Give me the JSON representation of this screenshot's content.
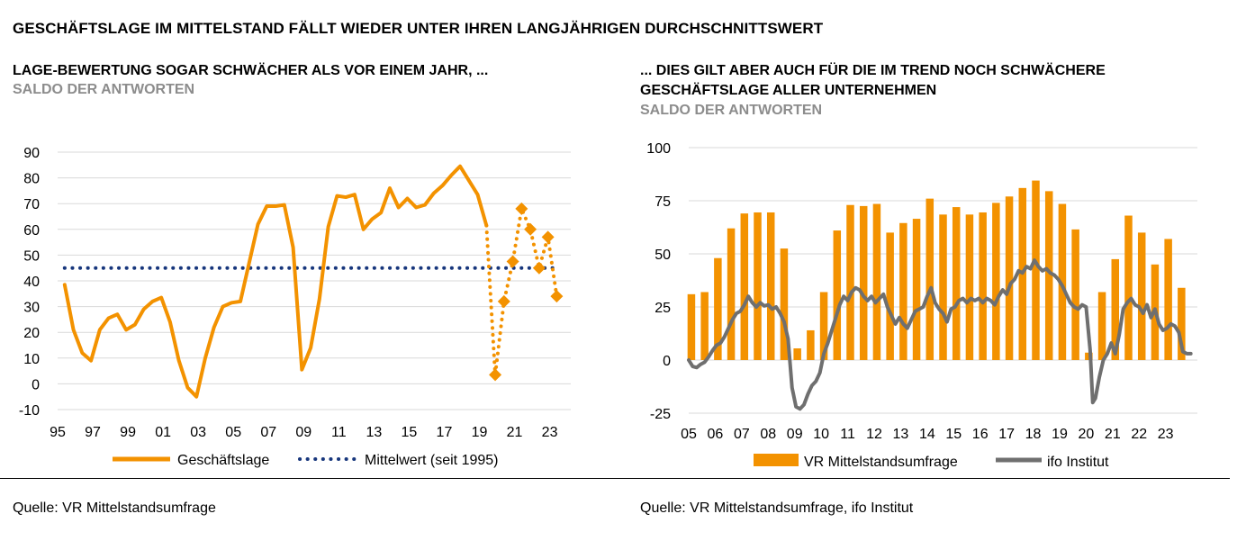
{
  "header": {
    "main_title": "GESCHÄFTSLAGE IM MITTELSTAND FÄLLT WIEDER UNTER IHREN LANGJÄHRIGEN DURCHSCHNITTSWERT"
  },
  "left": {
    "title": "LAGE-BEWERTUNG SOGAR SCHWÄCHER ALS VOR EINEM JAHR, ...",
    "subtitle": "SALDO DER ANTWORTEN",
    "source": "Quelle: VR Mittelstandsumfrage"
  },
  "right": {
    "title_line1": "... DIES GILT ABER AUCH FÜR DIE IM TREND NOCH SCHWÄCHERE",
    "title_line2": "GESCHÄFTSLAGE ALLER UNTERNEHMEN",
    "subtitle": "SALDO DER ANTWORTEN",
    "source": "Quelle: VR Mittelstandsumfrage, ifo Institut"
  },
  "chart_data": [
    {
      "type": "line",
      "title": "LAGE-BEWERTUNG SOGAR SCHWÄCHER ALS VOR EINEM JAHR, ...",
      "subtitle": "SALDO DER ANTWORTEN",
      "x_range": [
        1995,
        2024.2
      ],
      "ylim": [
        -10,
        90
      ],
      "y_ticks": [
        90,
        80,
        70,
        60,
        50,
        40,
        30,
        20,
        10,
        0,
        -10
      ],
      "x_ticks": [
        {
          "x": 1995,
          "label": "95"
        },
        {
          "x": 1997,
          "label": "97"
        },
        {
          "x": 1999,
          "label": "99"
        },
        {
          "x": 2001,
          "label": "01"
        },
        {
          "x": 2003,
          "label": "03"
        },
        {
          "x": 2005,
          "label": "05"
        },
        {
          "x": 2007,
          "label": "07"
        },
        {
          "x": 2009,
          "label": "09"
        },
        {
          "x": 2011,
          "label": "11"
        },
        {
          "x": 2013,
          "label": "13"
        },
        {
          "x": 2015,
          "label": "15"
        },
        {
          "x": 2017,
          "label": "17"
        },
        {
          "x": 2019,
          "label": "19"
        },
        {
          "x": 2021,
          "label": "21"
        },
        {
          "x": 2023,
          "label": "23"
        }
      ],
      "grid": true,
      "legend_position": "bottom",
      "colors": {
        "main": "#f39200",
        "mean": "#17367c",
        "negative_tick": "#e30613"
      },
      "series": [
        {
          "name": "Geschäftslage",
          "style": "solid",
          "points": [
            [
              1995.4,
              38.5
            ],
            [
              1995.9,
              21
            ],
            [
              1996.4,
              12
            ],
            [
              1996.9,
              9
            ],
            [
              1997.4,
              21
            ],
            [
              1997.9,
              25.5
            ],
            [
              1998.4,
              27
            ],
            [
              1998.9,
              21
            ],
            [
              1999.4,
              23
            ],
            [
              1999.9,
              29
            ],
            [
              2000.4,
              32
            ],
            [
              2000.9,
              33.5
            ],
            [
              2001.4,
              24
            ],
            [
              2001.9,
              9
            ],
            [
              2002.4,
              -1.5
            ],
            [
              2002.9,
              -5
            ],
            [
              2003.4,
              10
            ],
            [
              2003.9,
              22
            ],
            [
              2004.4,
              30
            ],
            [
              2004.9,
              31.5
            ],
            [
              2005.4,
              32
            ],
            [
              2005.9,
              47
            ],
            [
              2006.4,
              62
            ],
            [
              2006.9,
              69
            ],
            [
              2007.4,
              69
            ],
            [
              2007.9,
              69.5
            ],
            [
              2008.4,
              53
            ],
            [
              2008.9,
              5.5
            ],
            [
              2009.4,
              14
            ],
            [
              2009.9,
              33
            ],
            [
              2010.4,
              61
            ],
            [
              2010.9,
              73
            ],
            [
              2011.4,
              72.5
            ],
            [
              2011.9,
              73.5
            ],
            [
              2012.4,
              60
            ],
            [
              2012.9,
              64
            ],
            [
              2013.4,
              66.5
            ],
            [
              2013.9,
              76
            ],
            [
              2014.4,
              68.5
            ],
            [
              2014.9,
              72
            ],
            [
              2015.4,
              68.5
            ],
            [
              2015.9,
              69.5
            ],
            [
              2016.4,
              74
            ],
            [
              2016.9,
              77
            ],
            [
              2017.4,
              81
            ],
            [
              2017.9,
              84.5
            ],
            [
              2018.4,
              79
            ],
            [
              2018.9,
              73.5
            ],
            [
              2019.4,
              61.5
            ]
          ]
        },
        {
          "name": "",
          "style": "dotted-with-diamonds",
          "points": [
            [
              2019.4,
              61.5
            ],
            [
              2019.9,
              3.5
            ],
            [
              2020.4,
              32
            ],
            [
              2020.9,
              47.5
            ],
            [
              2021.4,
              68
            ],
            [
              2021.9,
              60
            ],
            [
              2022.4,
              45
            ],
            [
              2022.9,
              57
            ],
            [
              2023.4,
              34
            ]
          ]
        },
        {
          "name": "Mittelwert (seit 1995)",
          "style": "dotted",
          "value": 45
        }
      ]
    },
    {
      "type": "bar",
      "title": "... DIES GILT ABER AUCH FÜR DIE IM TREND NOCH SCHWÄCHERE GESCHÄFTSLAGE ALLER UNTERNEHMEN",
      "subtitle": "SALDO DER ANTWORTEN",
      "x_range": [
        2005,
        2024.2
      ],
      "ylim": [
        -25,
        100
      ],
      "y_ticks": [
        100,
        75,
        50,
        25,
        0,
        -25
      ],
      "x_ticks": [
        {
          "x": 2005,
          "label": "05"
        },
        {
          "x": 2006,
          "label": "06"
        },
        {
          "x": 2007,
          "label": "07"
        },
        {
          "x": 2008,
          "label": "08"
        },
        {
          "x": 2009,
          "label": "09"
        },
        {
          "x": 2010,
          "label": "10"
        },
        {
          "x": 2011,
          "label": "11"
        },
        {
          "x": 2012,
          "label": "12"
        },
        {
          "x": 2013,
          "label": "13"
        },
        {
          "x": 2014,
          "label": "14"
        },
        {
          "x": 2015,
          "label": "15"
        },
        {
          "x": 2016,
          "label": "16"
        },
        {
          "x": 2017,
          "label": "17"
        },
        {
          "x": 2018,
          "label": "18"
        },
        {
          "x": 2019,
          "label": "19"
        },
        {
          "x": 2020,
          "label": "20"
        },
        {
          "x": 2021,
          "label": "21"
        },
        {
          "x": 2022,
          "label": "22"
        },
        {
          "x": 2023,
          "label": "23"
        }
      ],
      "grid": true,
      "legend_position": "bottom",
      "colors": {
        "bars": "#f39200",
        "ifo": "#6f6f6f",
        "negative_tick": "#e30613"
      },
      "series": [
        {
          "name": "VR Mittelstandsumfrage",
          "style": "bar",
          "x": [
            2005.1,
            2005.6,
            2006.1,
            2006.6,
            2007.1,
            2007.6,
            2008.1,
            2008.6,
            2009.1,
            2009.6,
            2010.1,
            2010.6,
            2011.1,
            2011.6,
            2012.1,
            2012.6,
            2013.1,
            2013.6,
            2014.1,
            2014.6,
            2015.1,
            2015.6,
            2016.1,
            2016.6,
            2017.1,
            2017.6,
            2018.1,
            2018.6,
            2019.1,
            2019.6,
            2020.1,
            2020.6,
            2021.1,
            2021.6,
            2022.1,
            2022.6,
            2023.1,
            2023.6
          ],
          "values": [
            31,
            32,
            48,
            62,
            69,
            69.5,
            69.5,
            52.5,
            5.5,
            14,
            32,
            61,
            73,
            72.5,
            73.5,
            60,
            64.5,
            66.5,
            76,
            68.5,
            72,
            68.5,
            69.5,
            74,
            77,
            81,
            84.5,
            79.5,
            73.5,
            61.5,
            3.5,
            32,
            47.5,
            68,
            60,
            45,
            57,
            34
          ]
        },
        {
          "name": "ifo Institut",
          "style": "line",
          "points": [
            [
              2005.0,
              0
            ],
            [
              2005.15,
              -3
            ],
            [
              2005.3,
              -3.5
            ],
            [
              2005.45,
              -2
            ],
            [
              2005.6,
              -1
            ],
            [
              2005.75,
              1.5
            ],
            [
              2005.9,
              4.5
            ],
            [
              2006.05,
              7
            ],
            [
              2006.2,
              8
            ],
            [
              2006.35,
              11
            ],
            [
              2006.5,
              15
            ],
            [
              2006.65,
              19
            ],
            [
              2006.8,
              22
            ],
            [
              2006.95,
              23
            ],
            [
              2007.1,
              26
            ],
            [
              2007.25,
              30
            ],
            [
              2007.4,
              27
            ],
            [
              2007.55,
              25
            ],
            [
              2007.7,
              27
            ],
            [
              2007.85,
              25.5
            ],
            [
              2008.0,
              26
            ],
            [
              2008.15,
              24
            ],
            [
              2008.3,
              25
            ],
            [
              2008.45,
              22
            ],
            [
              2008.6,
              18
            ],
            [
              2008.75,
              10
            ],
            [
              2008.9,
              -13
            ],
            [
              2009.05,
              -22
            ],
            [
              2009.2,
              -23
            ],
            [
              2009.35,
              -21
            ],
            [
              2009.5,
              -16
            ],
            [
              2009.65,
              -12
            ],
            [
              2009.8,
              -10
            ],
            [
              2009.95,
              -6
            ],
            [
              2010.1,
              3
            ],
            [
              2010.25,
              8
            ],
            [
              2010.4,
              14
            ],
            [
              2010.55,
              20
            ],
            [
              2010.7,
              26
            ],
            [
              2010.85,
              30
            ],
            [
              2011.0,
              28
            ],
            [
              2011.15,
              32
            ],
            [
              2011.3,
              34
            ],
            [
              2011.45,
              33
            ],
            [
              2011.6,
              30
            ],
            [
              2011.75,
              28
            ],
            [
              2011.9,
              30
            ],
            [
              2012.05,
              27
            ],
            [
              2012.2,
              29
            ],
            [
              2012.35,
              31
            ],
            [
              2012.5,
              25
            ],
            [
              2012.65,
              21
            ],
            [
              2012.8,
              17
            ],
            [
              2012.95,
              20
            ],
            [
              2013.1,
              17
            ],
            [
              2013.25,
              15
            ],
            [
              2013.4,
              19
            ],
            [
              2013.55,
              23
            ],
            [
              2013.7,
              24
            ],
            [
              2013.85,
              25
            ],
            [
              2014.0,
              30
            ],
            [
              2014.15,
              34
            ],
            [
              2014.3,
              27
            ],
            [
              2014.45,
              24
            ],
            [
              2014.6,
              22
            ],
            [
              2014.75,
              18
            ],
            [
              2014.9,
              24
            ],
            [
              2015.05,
              25
            ],
            [
              2015.2,
              28
            ],
            [
              2015.35,
              29
            ],
            [
              2015.5,
              27
            ],
            [
              2015.65,
              29
            ],
            [
              2015.8,
              28
            ],
            [
              2015.95,
              29
            ],
            [
              2016.1,
              27
            ],
            [
              2016.25,
              29
            ],
            [
              2016.4,
              28
            ],
            [
              2016.55,
              26
            ],
            [
              2016.7,
              30
            ],
            [
              2016.85,
              33
            ],
            [
              2017.0,
              31
            ],
            [
              2017.15,
              36
            ],
            [
              2017.3,
              38
            ],
            [
              2017.45,
              42
            ],
            [
              2017.6,
              41
            ],
            [
              2017.75,
              44
            ],
            [
              2017.9,
              43
            ],
            [
              2018.05,
              47
            ],
            [
              2018.2,
              44
            ],
            [
              2018.35,
              42
            ],
            [
              2018.5,
              43
            ],
            [
              2018.65,
              41
            ],
            [
              2018.8,
              40
            ],
            [
              2018.95,
              38
            ],
            [
              2019.1,
              35
            ],
            [
              2019.25,
              31
            ],
            [
              2019.4,
              27
            ],
            [
              2019.55,
              25
            ],
            [
              2019.7,
              24
            ],
            [
              2019.85,
              26
            ],
            [
              2020.0,
              25
            ],
            [
              2020.15,
              5
            ],
            [
              2020.25,
              -20
            ],
            [
              2020.35,
              -18
            ],
            [
              2020.5,
              -8
            ],
            [
              2020.65,
              0
            ],
            [
              2020.8,
              3
            ],
            [
              2020.95,
              8
            ],
            [
              2021.1,
              3
            ],
            [
              2021.25,
              12
            ],
            [
              2021.4,
              24
            ],
            [
              2021.55,
              27
            ],
            [
              2021.7,
              29
            ],
            [
              2021.85,
              26
            ],
            [
              2022.0,
              25
            ],
            [
              2022.15,
              22
            ],
            [
              2022.3,
              26
            ],
            [
              2022.45,
              20
            ],
            [
              2022.6,
              24
            ],
            [
              2022.75,
              17
            ],
            [
              2022.9,
              14
            ],
            [
              2023.05,
              15
            ],
            [
              2023.2,
              17
            ],
            [
              2023.35,
              16
            ],
            [
              2023.5,
              13
            ],
            [
              2023.65,
              4
            ],
            [
              2023.8,
              3
            ],
            [
              2023.95,
              3
            ]
          ]
        }
      ]
    }
  ]
}
